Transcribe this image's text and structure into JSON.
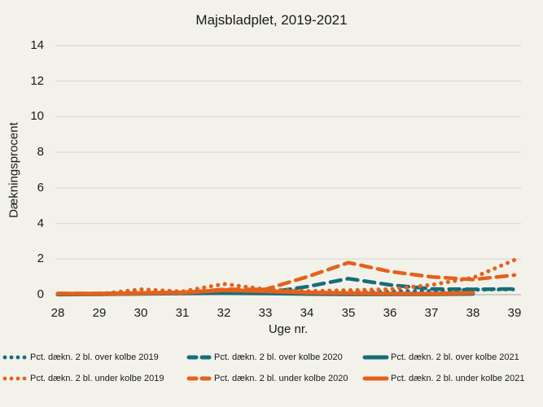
{
  "chart_data": {
    "type": "line",
    "title": "Majsbladplet, 2019-2021",
    "xlabel": "Uge nr.",
    "ylabel": "Dækningsprocent",
    "x": [
      28,
      29,
      30,
      31,
      32,
      33,
      34,
      35,
      36,
      37,
      38,
      39
    ],
    "y_ticks": [
      0,
      2,
      4,
      6,
      8,
      10,
      12,
      14
    ],
    "ylim": [
      0,
      14
    ],
    "grid": true,
    "legend_position": "bottom",
    "series": [
      {
        "name": "Pct. dækn. 2 bl. over kolbe 2019",
        "color": "#166d7a",
        "line_style": "dotted",
        "values": [
          0.02,
          0.02,
          0.06,
          0.08,
          0.12,
          0.08,
          0.06,
          0.1,
          0.18,
          0.2,
          0.28,
          0.3
        ]
      },
      {
        "name": "Pct. dækn. 2 bl. over kolbe 2020",
        "color": "#166d7a",
        "line_style": "dashed",
        "values": [
          0.02,
          0.05,
          0.1,
          0.12,
          0.12,
          0.1,
          0.45,
          0.9,
          0.55,
          0.32,
          0.3,
          0.32
        ]
      },
      {
        "name": "Pct. dækn. 2 bl. over kolbe 2021",
        "color": "#166d7a",
        "line_style": "solid",
        "values": [
          0.02,
          0.03,
          0.06,
          0.08,
          0.1,
          0.08,
          0.05,
          0.03,
          0.03,
          0.03,
          0.05,
          null
        ]
      },
      {
        "name": "Pct. dækn. 2 bl. under kolbe 2019",
        "color": "#e4611c",
        "line_style": "dotted",
        "values": [
          0.05,
          0.03,
          0.3,
          0.18,
          0.6,
          0.3,
          0.2,
          0.25,
          0.3,
          0.55,
          0.95,
          1.95
        ]
      },
      {
        "name": "Pct. dækn. 2 bl. under kolbe 2020",
        "color": "#e4611c",
        "line_style": "dashed",
        "values": [
          0.07,
          0.07,
          0.08,
          0.1,
          0.3,
          0.3,
          1.0,
          1.8,
          1.3,
          1.0,
          0.85,
          1.1
        ]
      },
      {
        "name": "Pct. dækn. 2 bl. under kolbe 2021",
        "color": "#e4611c",
        "line_style": "solid",
        "values": [
          0.05,
          0.05,
          0.08,
          0.12,
          0.25,
          0.2,
          0.12,
          0.08,
          0.06,
          0.05,
          0.1,
          null
        ]
      }
    ],
    "colors": {
      "over_kolbe_teal": "#166d7a",
      "under_kolbe_orange": "#e4611c",
      "background": "#f2f1ea",
      "gridline": "#d9d9d9",
      "axis_line": "#b8b8b8",
      "text": "#1a1a1a"
    }
  }
}
